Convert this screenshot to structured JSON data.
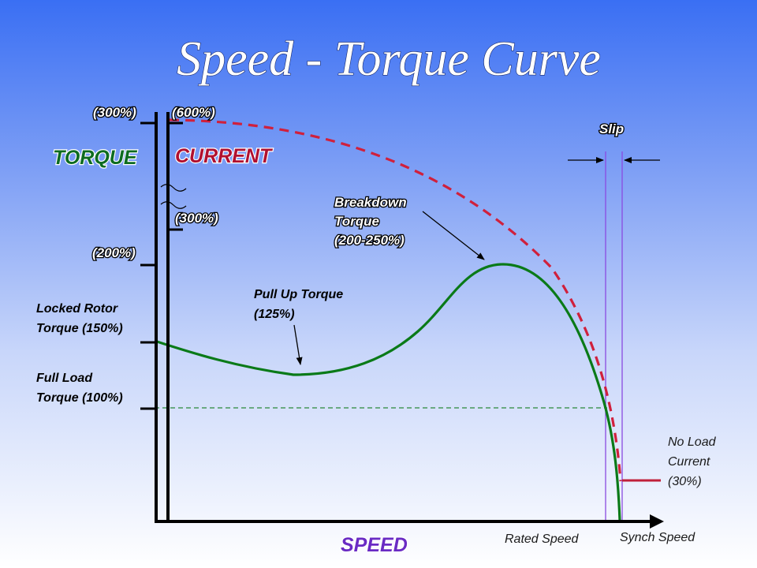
{
  "title": "Speed - Torque Curve",
  "axes": {
    "torque_title": "TORQUE",
    "current_title": "CURRENT",
    "speed_title": "SPEED",
    "torque_ticks": [
      "(300%)",
      "(200%)"
    ],
    "current_ticks": [
      "(600%)",
      "(300%)"
    ]
  },
  "annotations": {
    "slip": "Slip",
    "breakdown": [
      "Breakdown",
      "Torque",
      "(200-250%)"
    ],
    "pull_up": [
      "Pull Up Torque",
      "(125%)"
    ],
    "locked_rotor": [
      "Locked Rotor",
      "Torque (150%)"
    ],
    "full_load": [
      "Full Load",
      "Torque (100%)"
    ],
    "no_load": [
      "No Load",
      "Current",
      "(30%)"
    ],
    "rated_speed": "Rated Speed",
    "synch_speed": "Synch Speed"
  },
  "colors": {
    "torque_curve": "#0a7a18",
    "current_curve": "#d0203c",
    "torque_title": "#0d6b20",
    "current_title": "#b01030",
    "speed_title": "#6a2bc4",
    "slip_lines": "#8a4be0",
    "full_load_line": "#2a8a3a"
  }
}
